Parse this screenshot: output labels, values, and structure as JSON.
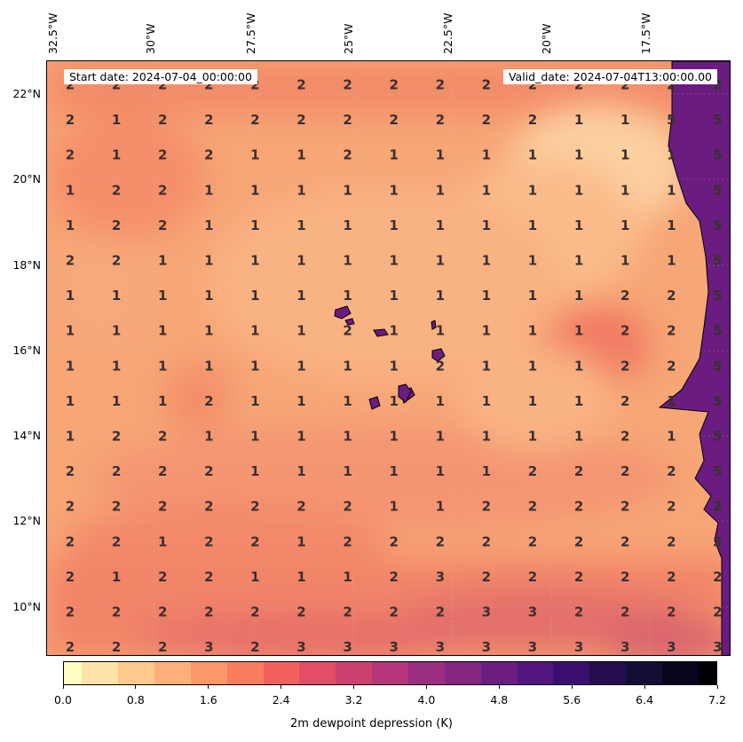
{
  "map": {
    "start_date": "Start date: 2024-07-04_00:00:00",
    "valid_date": "Valid_date: 2024-07-04T13:00:00.00",
    "lon_labels": [
      "32.5°W",
      "30°W",
      "27.5°W",
      "25°W",
      "22.5°W",
      "20°W",
      "17.5°W"
    ],
    "lat_labels": [
      "22°N",
      "20°N",
      "18°N",
      "16°N",
      "14°N",
      "12°N",
      "10°N"
    ],
    "colorbar_label": "2m dewpoint depression (K)",
    "colorbar_ticks": [
      "0.0",
      "0.8",
      "1.6",
      "2.4",
      "3.2",
      "4.0",
      "4.8",
      "5.6",
      "6.4",
      "7.2"
    ],
    "colormap": "magma_r",
    "colorbar_min": 0.0,
    "colorbar_max": 7.2,
    "colorbar_levels": 36,
    "land_color": "#6a1c80",
    "grid_values": [
      [
        2,
        2,
        2,
        2,
        2,
        2,
        2,
        2,
        2,
        2,
        2,
        2,
        2,
        2,
        2
      ],
      [
        2,
        1,
        2,
        2,
        2,
        2,
        2,
        2,
        2,
        2,
        2,
        1,
        1,
        5,
        5
      ],
      [
        2,
        1,
        2,
        2,
        1,
        1,
        2,
        1,
        1,
        1,
        1,
        1,
        1,
        1,
        5
      ],
      [
        1,
        2,
        2,
        1,
        1,
        1,
        1,
        1,
        1,
        1,
        1,
        1,
        1,
        1,
        5
      ],
      [
        1,
        2,
        2,
        1,
        1,
        1,
        1,
        1,
        1,
        1,
        1,
        1,
        1,
        1,
        5
      ],
      [
        2,
        2,
        1,
        1,
        1,
        1,
        1,
        1,
        1,
        1,
        1,
        1,
        1,
        1,
        5
      ],
      [
        1,
        1,
        1,
        1,
        1,
        1,
        1,
        1,
        1,
        1,
        1,
        1,
        2,
        2,
        5
      ],
      [
        1,
        1,
        1,
        1,
        1,
        1,
        2,
        1,
        1,
        1,
        1,
        1,
        2,
        2,
        5
      ],
      [
        1,
        1,
        1,
        1,
        1,
        1,
        1,
        1,
        2,
        1,
        1,
        1,
        2,
        2,
        5
      ],
      [
        1,
        1,
        1,
        2,
        1,
        1,
        1,
        1,
        1,
        1,
        1,
        1,
        2,
        1,
        5
      ],
      [
        1,
        2,
        2,
        1,
        1,
        1,
        1,
        1,
        1,
        1,
        1,
        1,
        2,
        1,
        5
      ],
      [
        2,
        2,
        2,
        2,
        1,
        1,
        1,
        1,
        1,
        1,
        2,
        2,
        2,
        2,
        5
      ],
      [
        2,
        2,
        2,
        2,
        2,
        2,
        2,
        1,
        1,
        2,
        2,
        2,
        2,
        2,
        2
      ],
      [
        2,
        2,
        1,
        2,
        2,
        1,
        2,
        2,
        2,
        2,
        2,
        2,
        2,
        2,
        3
      ],
      [
        2,
        1,
        2,
        2,
        1,
        1,
        1,
        2,
        3,
        2,
        2,
        2,
        2,
        2,
        2
      ],
      [
        2,
        2,
        2,
        2,
        2,
        2,
        2,
        2,
        2,
        3,
        3,
        2,
        2,
        2,
        2
      ],
      [
        2,
        2,
        2,
        3,
        2,
        3,
        3,
        3,
        3,
        3,
        3,
        3,
        3,
        3,
        3
      ]
    ]
  }
}
